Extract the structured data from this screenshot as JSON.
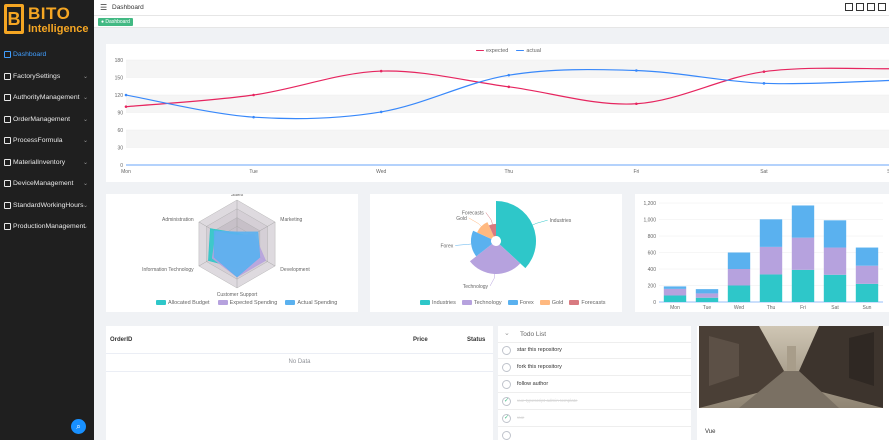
{
  "sidebar": {
    "logo_line1": "BITO",
    "logo_line2": "Intelligence",
    "items": [
      {
        "label": "Dashboard",
        "active": true
      },
      {
        "label": "FactorySettings"
      },
      {
        "label": "AuthorityManagement"
      },
      {
        "label": "OrderManagement"
      },
      {
        "label": "ProcessFormula"
      },
      {
        "label": "MaterialInventory"
      },
      {
        "label": "DeviceManagement"
      },
      {
        "label": "StandardWorkingHours"
      },
      {
        "label": "ProductionManagement"
      }
    ],
    "help_icon": "search-icon"
  },
  "header": {
    "breadcrumb": "Dashboard",
    "tools": [
      "fullscreen-icon",
      "edit-icon",
      "font-size-icon",
      "language-icon"
    ]
  },
  "tags": {
    "active": "Dashboard"
  },
  "line_chart": {
    "legend": [
      "expected",
      "actual"
    ],
    "colors": {
      "expected": "#e6255f",
      "actual": "#3888fa"
    }
  },
  "radar_chart": {
    "indicators": [
      "Sales",
      "Marketing",
      "Development",
      "Customer Support",
      "Information Technology",
      "Administration"
    ],
    "legend": [
      "Allocated Budget",
      "Expected Spending",
      "Actual Spending"
    ],
    "colors": [
      "#2ec7c9",
      "#b6a2de",
      "#5ab1ef"
    ]
  },
  "pie_chart": {
    "legend": [
      "Industries",
      "Technology",
      "Forex",
      "Gold",
      "Forecasts"
    ],
    "colors": [
      "#2ec7c9",
      "#b6a2de",
      "#5ab1ef",
      "#ffb980",
      "#d87a80"
    ]
  },
  "table": {
    "columns": [
      "OrderID",
      "Price",
      "Status"
    ],
    "empty": "No Data"
  },
  "todo": {
    "title": "Todo List",
    "items": [
      {
        "text": "star this repository",
        "done": false
      },
      {
        "text": "fork this repository",
        "done": false
      },
      {
        "text": "follow author",
        "done": false
      },
      {
        "text": "vue-typescript-admin-template",
        "done": true
      },
      {
        "text": "vue",
        "done": true
      }
    ]
  },
  "card": {
    "caption": "Vue"
  },
  "chart_data": [
    {
      "type": "line",
      "categories": [
        "Mon",
        "Tue",
        "Wed",
        "Thu",
        "Fri",
        "Sat",
        "Sun"
      ],
      "series": [
        {
          "name": "expected",
          "values": [
            100,
            120,
            161,
            134,
            105,
            160,
            165
          ]
        },
        {
          "name": "actual",
          "values": [
            120,
            82,
            91,
            154,
            162,
            140,
            145
          ]
        }
      ],
      "ylim": [
        0,
        180
      ],
      "yticks": [
        0,
        30,
        60,
        90,
        120,
        150,
        180
      ],
      "legend_position": "top-center"
    },
    {
      "type": "radar",
      "indicators": [
        "Sales",
        "Marketing",
        "Development",
        "Customer Support",
        "Information Technology",
        "Administration"
      ],
      "max": [
        20000,
        20000,
        20000,
        20000,
        20000,
        20000
      ],
      "series": [
        {
          "name": "Allocated Budget",
          "values": [
            5000,
            7000,
            12000,
            11000,
            15000,
            14000
          ]
        },
        {
          "name": "Expected Spending",
          "values": [
            4000,
            9000,
            15000,
            15000,
            13000,
            11000
          ]
        },
        {
          "name": "Actual Spending",
          "values": [
            5500,
            11000,
            12000,
            15000,
            12000,
            12000
          ]
        }
      ],
      "legend_position": "bottom"
    },
    {
      "type": "pie",
      "labels": [
        "Industries",
        "Technology",
        "Forex",
        "Gold",
        "Forecasts"
      ],
      "values": [
        320,
        240,
        149,
        100,
        59
      ],
      "legend_position": "bottom"
    },
    {
      "type": "bar",
      "stacked": true,
      "categories": [
        "Mon",
        "Tue",
        "Wed",
        "Thu",
        "Fri",
        "Sat",
        "Sun"
      ],
      "series": [
        {
          "values": [
            79,
            52,
            200,
            334,
            390,
            330,
            220
          ]
        },
        {
          "values": [
            80,
            52,
            200,
            334,
            390,
            330,
            220
          ]
        },
        {
          "values": [
            30,
            52,
            200,
            334,
            390,
            330,
            220
          ]
        }
      ],
      "ylim": [
        0,
        1200
      ],
      "yticks": [
        0,
        200,
        400,
        600,
        800,
        1000,
        1200
      ],
      "colors": [
        "#2ec7c9",
        "#b6a2de",
        "#5ab1ef"
      ]
    }
  ]
}
